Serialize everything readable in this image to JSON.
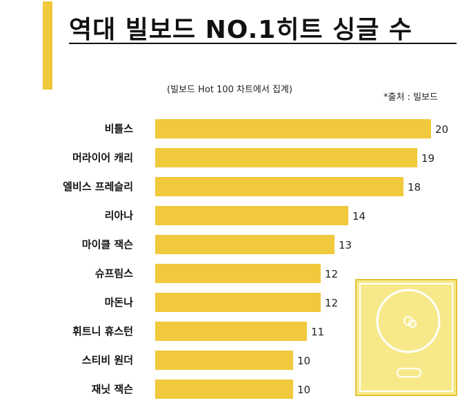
{
  "header": {
    "title": "역대 빌보드 NO.1히트 싱글 수",
    "subtitle": "(빌보드 Hot 100 차트에서 집계)",
    "source": "*출처 :  빌보드"
  },
  "colors": {
    "bar": "#f0c93c",
    "accent": "#f0c93c",
    "record_bg": "#f7e98a",
    "record_outline": "#e2c23a"
  },
  "icons": {
    "decoration": "record-player-icon"
  },
  "chart_data": {
    "type": "bar",
    "orientation": "horizontal",
    "title": "역대 빌보드 NO.1히트 싱글 수",
    "subtitle": "(빌보드 Hot 100 차트에서 집계)",
    "categories": [
      "비틀스",
      "머라이어 캐리",
      "엘비스 프레슬리",
      "리아나",
      "마이클 잭슨",
      "슈프림스",
      "마돈나",
      "휘트니 휴스턴",
      "스티비 원더",
      "재닛 잭슨"
    ],
    "values": [
      20,
      19,
      18,
      14,
      13,
      12,
      12,
      11,
      10,
      10
    ],
    "xlim": [
      0,
      20
    ],
    "grid": false,
    "legend": "none",
    "data_labels": true
  }
}
